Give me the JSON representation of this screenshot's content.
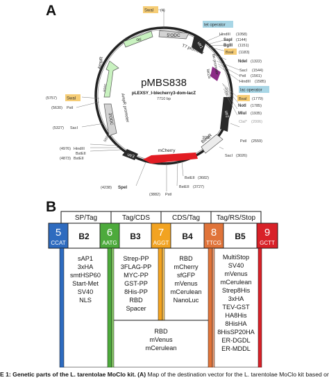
{
  "panel_a_letter": "A",
  "panel_b_letter": "B",
  "plasmid": {
    "name": "pMBS838",
    "subtitle": "pLEXSY_I-blecherry3-dom-lacZ",
    "size": "7710 bp",
    "scale": [
      "1000",
      "2000",
      "3000",
      "4000",
      "5000",
      "6000",
      "7000"
    ]
  },
  "features": {
    "ori": "ori",
    "odc5": "5'ODC",
    "utr1": "utr1",
    "t7": "T7 promoter",
    "tetop": "tet operator",
    "lacZa": "lacZα",
    "lacprom": "lac promoter",
    "lacop": "lac operator",
    "utr2": "utr2",
    "bleoR": "BleoR",
    "mcherry": "mCherry",
    "utr3": "utr3",
    "odc3": "3'ODC",
    "ampprom": "AmpR promoter",
    "ampr": "AmpR"
  },
  "sites": {
    "swa_top": "SwaI",
    "swa_top_pos": "(4)",
    "hind1": "HindIII",
    "hind1_pos": "(1058)",
    "sap": "SapI",
    "sap_pos": "(1144)",
    "bgl": "BglII",
    "bgl_pos": "(1151)",
    "bsai1": "BsaI",
    "bsai1_pos": "(1183)",
    "nde": "NdeI",
    "nde_pos": "(1322)",
    "sac1": "SacI",
    "sac1_pos": "(1544)",
    "pst1": "PstI",
    "pst1_pos": "(1561)",
    "hind2": "HindIII",
    "hind2_pos": "(1585)",
    "bsai2": "BsaI",
    "bsai2_pos": "(1779)",
    "not": "NotI",
    "not_pos": "(1785)",
    "mlu": "MluI",
    "mlu_pos": "(1935)",
    "cla": "ClaI*",
    "cla_pos": "(2006)",
    "pst2": "PstI",
    "pst2_pos": "(2559)",
    "sac2": "SacI",
    "sac2_pos": "(3026)",
    "bst1": "BstEII",
    "bst1_pos": "(3682)",
    "bst2": "BstEII",
    "bst2_pos": "(3727)",
    "pst3": "PstI",
    "pst3_pos": "(3882)",
    "spe": "SpeI",
    "spe_pos": "(4238)",
    "bst3": "BstEII",
    "bst3_pos": "(4873)",
    "bst4": "BstEII",
    "bst4_pos": "",
    "hind3": "HindIII",
    "hind3_pos": "(4976)",
    "sac3": "SacI",
    "sac3_pos": "(5327)",
    "pst4": "PstI",
    "pst4_pos": "(5630)",
    "swa2": "SwaI",
    "swa2_pos": "(5757)"
  },
  "groups": [
    "SP/Tag",
    "Tag/CDS",
    "CDS/Tag",
    "Tag/RS/Stop"
  ],
  "overhangs": [
    {
      "num": "5",
      "seq": "CCAT",
      "color": "#2e6bbf"
    },
    {
      "num": "6",
      "seq": "AATG",
      "color": "#4daa3c"
    },
    {
      "num": "7",
      "seq": "AGGT",
      "color": "#f2a321"
    },
    {
      "num": "8",
      "seq": "TTCG",
      "color": "#e0743a"
    },
    {
      "num": "9",
      "seq": "GCTT",
      "color": "#d82128"
    }
  ],
  "slots": [
    {
      "label": "B2",
      "items": [
        "sAP1",
        "3xHA",
        "smtHSP60",
        "Start-Met",
        "SV40",
        "NLS"
      ]
    },
    {
      "label": "B3",
      "items": [
        "Strep-PP",
        "3FLAG-PP",
        "MYC-PP",
        "GST-PP",
        "8His-PP",
        "RBD",
        "Spacer"
      ]
    },
    {
      "label": "B4",
      "items": [
        "RBD",
        "mCherry",
        "sfGFP",
        "mVenus",
        "mCerulean",
        "NanoLuc"
      ]
    },
    {
      "label": "B5",
      "items": [
        "MultiStop",
        "SV40",
        "mVenus",
        "mCerulean",
        "Strep8His",
        "3xHA",
        "TEV-GST",
        "HA8His",
        "8HisHA",
        "8HisSP20HA",
        "ER-DGDL",
        "ER-MDDL"
      ]
    }
  ],
  "b34_items": [
    "RBD",
    "mVenus",
    "mCerulean"
  ],
  "caption": {
    "bold": "E 1: Genetic parts of the L. tarentolae MoClo kit. (A)",
    "rest": " Map of the destination vector for the L. tarentolae MoClo kit based on"
  }
}
